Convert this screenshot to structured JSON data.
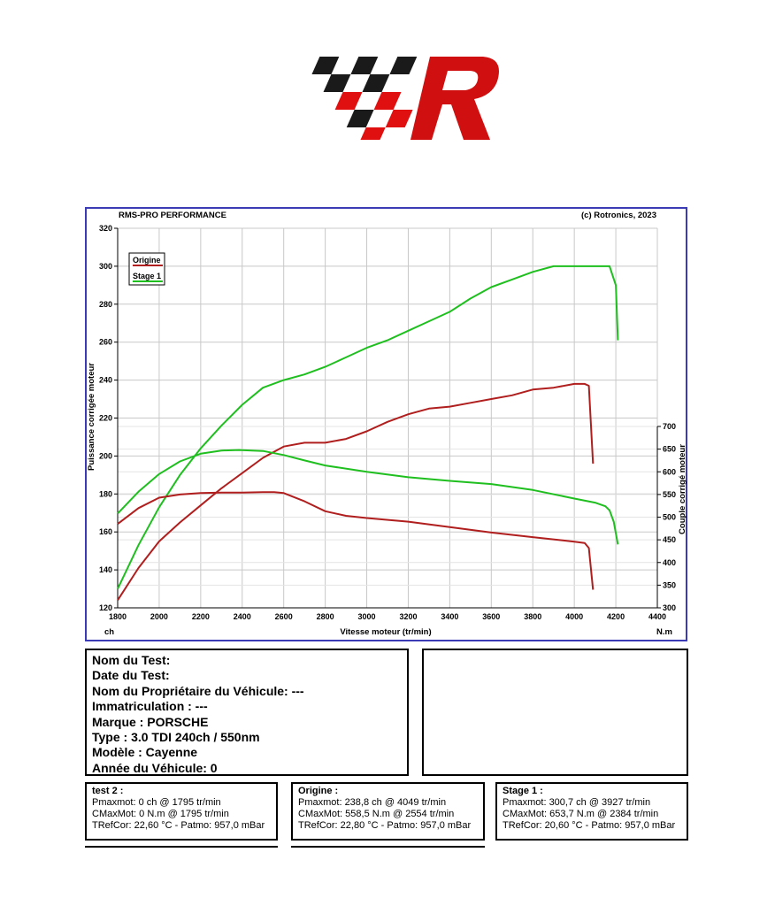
{
  "logo": {
    "text": "RMS",
    "colors": {
      "black": "#1a1a1a",
      "red": "#e01010"
    }
  },
  "chart_data": {
    "type": "line",
    "title": "RMS-PRO PERFORMANCE",
    "copyright": "(c) Rotronics, 2023",
    "xlabel": "Vitesse moteur (tr/min)",
    "x_unit": "ch",
    "y2_unit": "N.m",
    "ylabel": "Puissance corrigée moteur",
    "y2label": "Couple corrigé moteur",
    "xlim": [
      1800,
      4400
    ],
    "ylim": [
      120,
      320
    ],
    "y2lim": [
      300,
      700
    ],
    "xticks": [
      "1800",
      "2000",
      "2200",
      "2400",
      "2600",
      "2800",
      "3000",
      "3200",
      "3400",
      "3600",
      "3800",
      "4000",
      "4200",
      "4400"
    ],
    "yticks": [
      "120",
      "140",
      "160",
      "180",
      "200",
      "220",
      "240",
      "260",
      "280",
      "300",
      "320"
    ],
    "y2ticks": [
      "300",
      "350",
      "400",
      "450",
      "500",
      "550",
      "600",
      "650",
      "700"
    ],
    "grid": true,
    "legend": {
      "position": "top-left",
      "entries": [
        {
          "label": "Origine",
          "color": "#b01e1e"
        },
        {
          "label": "Stage 1",
          "color": "#1fbf1f"
        }
      ]
    },
    "series": [
      {
        "name": "Origine",
        "quantity": "power",
        "axis": "left",
        "color": "#b01e1e",
        "x": [
          1800,
          1900,
          2000,
          2100,
          2200,
          2300,
          2400,
          2500,
          2600,
          2700,
          2800,
          2900,
          3000,
          3100,
          3200,
          3300,
          3400,
          3500,
          3600,
          3700,
          3800,
          3900,
          4000,
          4050,
          4070,
          4090
        ],
        "y": [
          124,
          141,
          155,
          165,
          174,
          183,
          191,
          199,
          205,
          207,
          207,
          209,
          213,
          218,
          222,
          225,
          226,
          228,
          230,
          232,
          235,
          236,
          238,
          238,
          237,
          196
        ]
      },
      {
        "name": "Stage 1",
        "quantity": "power",
        "axis": "left",
        "color": "#1fbf1f",
        "x": [
          1800,
          1900,
          2000,
          2100,
          2200,
          2300,
          2400,
          2500,
          2600,
          2700,
          2800,
          2900,
          3000,
          3100,
          3200,
          3300,
          3400,
          3500,
          3600,
          3700,
          3800,
          3900,
          4000,
          4100,
          4150,
          4170,
          4200,
          4210
        ],
        "y": [
          130,
          153,
          173,
          190,
          204,
          216,
          227,
          236,
          240,
          243,
          247,
          252,
          257,
          261,
          266,
          271,
          276,
          283,
          289,
          293,
          297,
          300,
          300,
          300,
          300,
          300,
          290,
          261
        ]
      },
      {
        "name": "Origine",
        "quantity": "torque",
        "axis": "right",
        "color": "#b01e1e",
        "x": [
          1800,
          1900,
          2000,
          2100,
          2200,
          2300,
          2400,
          2500,
          2554,
          2600,
          2700,
          2800,
          2900,
          3000,
          3200,
          3400,
          3600,
          3800,
          4000,
          4050,
          4070,
          4090
        ],
        "y": [
          485,
          520,
          543,
          550,
          553,
          554,
          554,
          555,
          555,
          553,
          535,
          513,
          503,
          498,
          490,
          478,
          466,
          456,
          446,
          443,
          432,
          340
        ]
      },
      {
        "name": "Stage 1",
        "quantity": "torque",
        "axis": "right",
        "color": "#1fbf1f",
        "x": [
          1800,
          1900,
          2000,
          2100,
          2200,
          2300,
          2384,
          2500,
          2600,
          2700,
          2800,
          3000,
          3200,
          3400,
          3600,
          3800,
          4000,
          4100,
          4150,
          4170,
          4190,
          4210
        ],
        "y": [
          508,
          556,
          595,
          623,
          640,
          647,
          648,
          646,
          637,
          625,
          614,
          600,
          588,
          580,
          573,
          560,
          541,
          532,
          524,
          515,
          490,
          440
        ]
      }
    ]
  },
  "vehicle": {
    "rows": [
      "Nom du Test:",
      "Date du Test:",
      "Nom du Propriétaire du Véhicule: ---",
      "Immatriculation  : ---",
      "Marque  : PORSCHE",
      "Type  : 3.0 TDI 240ch / 550nm",
      "Modèle  : Cayenne",
      "Année du Véhicule: 0"
    ]
  },
  "tests": [
    {
      "title": "test 2 :",
      "pmax": "Pmaxmot: 0 ch @ 1795 tr/min",
      "cmax": "CMaxMot: 0 N.m @ 1795 tr/min",
      "tref": "TRefCor: 22,60 °C - Patmo: 957,0 mBar"
    },
    {
      "title": "Origine :",
      "pmax": "Pmaxmot: 238,8 ch @ 4049 tr/min",
      "cmax": "CMaxMot: 558,5 N.m @ 2554 tr/min",
      "tref": "TRefCor: 22,80 °C - Patmo: 957,0 mBar"
    },
    {
      "title": "Stage 1 :",
      "pmax": "Pmaxmot: 300,7 ch @ 3927 tr/min",
      "cmax": "CMaxMot: 653,7 N.m @ 2384 tr/min",
      "tref": "TRefCor: 20,60 °C - Patmo: 957,0 mBar"
    }
  ]
}
